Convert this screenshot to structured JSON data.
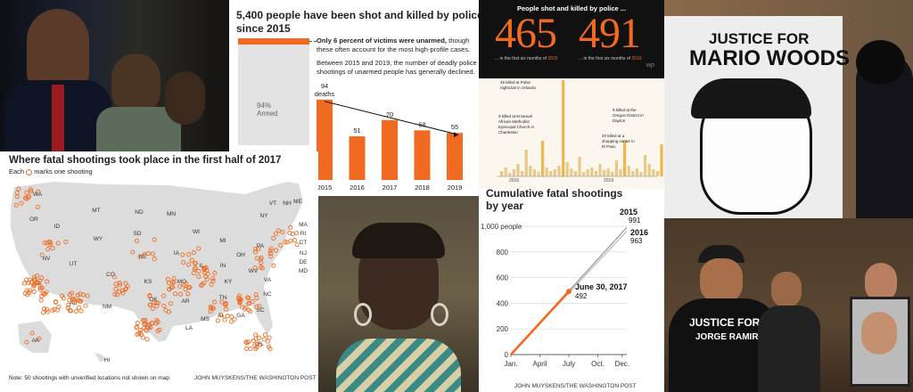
{
  "colors": {
    "accent": "#f06b21",
    "dark": "#111111",
    "light_gray": "#e3e3e3",
    "map_gray": "#dcdcdc"
  },
  "bars": {
    "title_line1": "5,400 people have been shot and killed by police",
    "title_line2": "since 2015",
    "unarmed_note_bold": "Only 6 percent of victims were unarmed,",
    "unarmed_note_rest": " though",
    "unarmed_note_line2": "these often account for the most high-profile cases.",
    "decline_line1": "Between 2015 and 2019, the number of deadly police",
    "decline_line2": "shootings of unarmed people has generally declined.",
    "armed_pct": "94%",
    "armed_label": "Armed",
    "deaths_label": "deaths",
    "unarmed_share": 0.06
  },
  "chart_data": [
    {
      "type": "bar",
      "title": "",
      "categories": [
        "2015",
        "2016",
        "2017",
        "2018",
        "2019"
      ],
      "values": [
        94,
        51,
        70,
        58,
        55
      ],
      "xlabel": "",
      "ylabel": "",
      "ylim": [
        0,
        100
      ]
    },
    {
      "type": "line",
      "title": "Cumulative fatal shootings by year",
      "x_ticks": [
        "Jan.",
        "April",
        "July",
        "Oct.",
        "Dec."
      ],
      "y_ticks": [
        "0",
        "200",
        "400",
        "600",
        "800",
        "1,000 people"
      ],
      "ylim": [
        0,
        1000
      ],
      "series": [
        {
          "name": "2015",
          "end_value": 991
        },
        {
          "name": "2016",
          "end_value": 963
        },
        {
          "name": "June 30, 2017",
          "end_value": 492
        }
      ]
    }
  ],
  "counts": {
    "header": "People shot and killed by police ...",
    "left_number": "465",
    "right_number": "491",
    "left_caption_a": "... in the first six months of ",
    "left_caption_year": "2015",
    "right_caption_a": "... in the first six months of ",
    "right_caption_year": "2016",
    "logo": "wp"
  },
  "events": {
    "annotations": [
      "49 killed at Pulse nightclub in Orlando",
      "9 killed at Emanuel African Methodist Episcopal Church in Charleston",
      "9 killed at the Oregon District in Dayton",
      "20 killed at a shopping center in El Paso"
    ],
    "year_a": "2016",
    "year_b": "2019"
  },
  "map": {
    "title": "Where fatal shootings took place in the first half of 2017",
    "legend_pre": "Each ",
    "legend_post": " marks one shooting",
    "note": "Note: 50 shootings with unverified locations not shown on map",
    "credit": "JOHN MUYSKENS/THE WASHINGTON POST",
    "states": [
      "WA",
      "OR",
      "ID",
      "MT",
      "ND",
      "MN",
      "WY",
      "SD",
      "WI",
      "MI",
      "NY",
      "VT",
      "NH",
      "ME",
      "MA",
      "RI",
      "CT",
      "NJ",
      "DE",
      "MD",
      "NV",
      "UT",
      "CO",
      "NE",
      "IA",
      "IL",
      "IN",
      "OH",
      "PA",
      "CA",
      "KS",
      "MO",
      "KY",
      "WV",
      "VA",
      "AZ",
      "NM",
      "OK",
      "AR",
      "TN",
      "NC",
      "SC",
      "TX",
      "LA",
      "MS",
      "AL",
      "GA",
      "FL",
      "AK",
      "HI"
    ]
  },
  "cumulative": {
    "title_line1": "Cumulative fatal shootings",
    "title_line2": "by year",
    "label_2015": "2015",
    "value_2015": "991",
    "label_2016": "2016",
    "value_2016": "963",
    "label_2017": "June 30, 2017",
    "value_2017": "492",
    "credit": "JOHN MUYSKENS/THE WASHINGTON POST"
  },
  "banner": {
    "line1": "JUSTICE FOR",
    "line2": "MARIO WOODS"
  },
  "shirt": {
    "line1": "JUSTICE FOR",
    "line2": "JORGE RAMIR"
  }
}
